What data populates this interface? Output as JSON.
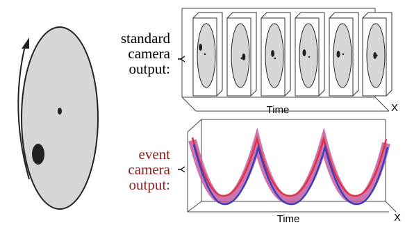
{
  "standard": {
    "label": [
      "standard",
      "camera",
      "output:"
    ],
    "time": "Time",
    "y": "Y",
    "x": "X"
  },
  "event": {
    "label": [
      "event",
      "camera",
      "output:"
    ],
    "time": "Time",
    "y": "Y",
    "x": "X"
  }
}
